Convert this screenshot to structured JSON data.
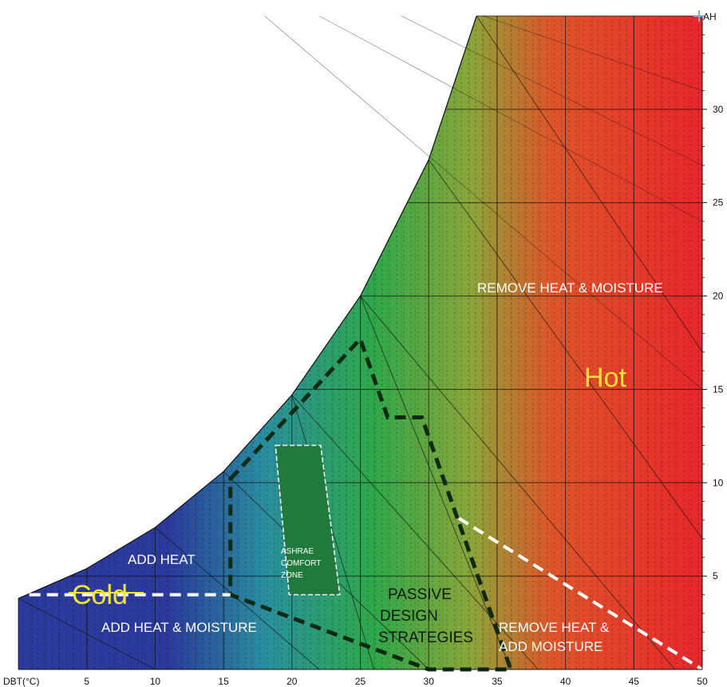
{
  "chart_data": {
    "type": "area",
    "xlabel": "DBT(°C)",
    "ylabel": "AH",
    "xlim": [
      0,
      50
    ],
    "ylim": [
      0,
      35
    ],
    "x_ticks": [
      5,
      10,
      15,
      20,
      25,
      30,
      35,
      40,
      45,
      50
    ],
    "y_ticks": [
      5,
      10,
      15,
      20,
      25,
      30
    ],
    "grid": true,
    "saturation_curve": [
      [
        0,
        3.8
      ],
      [
        5,
        5.4
      ],
      [
        10,
        7.6
      ],
      [
        15,
        10.6
      ],
      [
        20,
        14.7
      ],
      [
        25,
        20.0
      ],
      [
        30,
        27.3
      ],
      [
        33.5,
        35.0
      ]
    ],
    "passive_zone": [
      [
        15.5,
        10.2
      ],
      [
        25,
        17.7
      ],
      [
        27,
        13.5
      ],
      [
        29.5,
        13.5
      ],
      [
        36,
        0
      ],
      [
        30,
        0
      ],
      [
        15.5,
        4
      ]
    ],
    "comfort_zone": [
      [
        18.8,
        12.0
      ],
      [
        22.1,
        12.0
      ],
      [
        23.5,
        4.0
      ],
      [
        19.8,
        4.0
      ]
    ],
    "cold_line": [
      [
        0.8,
        4.0
      ],
      [
        15.5,
        4.0
      ]
    ],
    "hot_dry_line": [
      [
        32.2,
        8.1
      ],
      [
        50,
        0
      ]
    ],
    "colors": {
      "cold": "#2b3a9c",
      "mid": "#2fa84a",
      "hot": "#e8262a",
      "passive_outline": "#0e2a12",
      "comfort_fill": "#1f7a3c"
    },
    "labels": {
      "remove_heat_moisture": "REMOVE HEAT & MOISTURE",
      "hot": "Hot",
      "cold": "Cold",
      "add_heat": "ADD HEAT",
      "add_heat_moisture": "ADD HEAT & MOISTURE",
      "comfort_1": "ASHRAE",
      "comfort_2": "COMFORT",
      "comfort_3": "ZONE",
      "passive_1": "PASSIVE",
      "passive_2": "DESIGN",
      "passive_3": "STRATEGIES",
      "remove_heat_add_1": "REMOVE HEAT &",
      "remove_heat_add_2": "ADD MOISTURE"
    }
  }
}
